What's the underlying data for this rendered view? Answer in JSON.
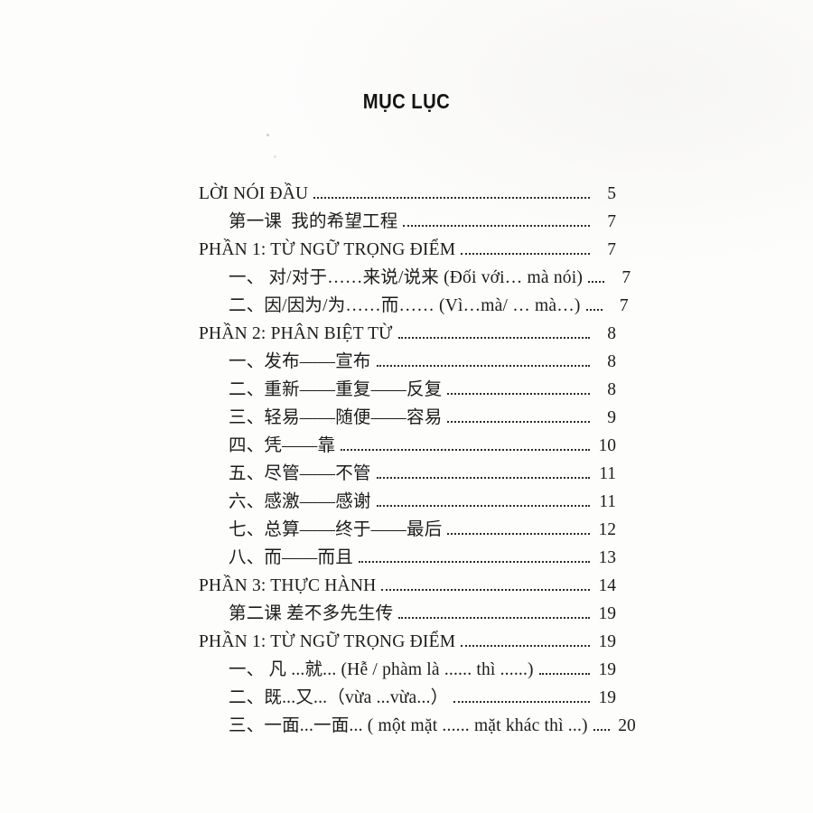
{
  "document": {
    "title": "MỤC LỤC"
  },
  "toc": {
    "entries": [
      {
        "label": "LỜI NÓI ĐẦU",
        "page": "5",
        "indent": 0
      },
      {
        "label": "第一课  我的希望工程",
        "page": "7",
        "indent": 1
      },
      {
        "label": "PHẦN 1: TỪ NGỮ TRỌNG ĐIỂM",
        "page": "7",
        "indent": 0
      },
      {
        "label": "一、 对/对于……来说/说来 (Đối với… mà nói)",
        "page": "7",
        "indent": 1
      },
      {
        "label": "二、因/因为/为……而…… (Vì…mà/ … mà…)",
        "page": "7",
        "indent": 1
      },
      {
        "label": "PHẦN 2: PHÂN BIỆT TỪ",
        "page": "8",
        "indent": 0
      },
      {
        "label": "一、发布——宣布",
        "page": "8",
        "indent": 1
      },
      {
        "label": "二、重新——重复——反复",
        "page": "8",
        "indent": 1
      },
      {
        "label": "三、轻易——随便——容易",
        "page": "9",
        "indent": 1
      },
      {
        "label": "四、凭——靠",
        "page": "10",
        "indent": 1
      },
      {
        "label": "五、尽管——不管",
        "page": "11",
        "indent": 1
      },
      {
        "label": "六、感激——感谢",
        "page": "11",
        "indent": 1
      },
      {
        "label": "七、总算——终于——最后",
        "page": "12",
        "indent": 1
      },
      {
        "label": "八、而——而且",
        "page": "13",
        "indent": 1
      },
      {
        "label": "PHẦN 3: THỰC HÀNH",
        "page": "14",
        "indent": 0
      },
      {
        "label": "第二课 差不多先生传",
        "page": "19",
        "indent": 1
      },
      {
        "label": "PHẦN 1: TỪ NGỮ TRỌNG ĐIỂM",
        "page": "19",
        "indent": 0
      },
      {
        "label": "一、 凡 ...就... (Hễ / phàm là ...... thì ......)",
        "page": "19",
        "indent": 1
      },
      {
        "label": "二、既...又...（vừa ...vừa...）",
        "page": "19",
        "indent": 1
      },
      {
        "label": "三、一面...一面... ( một mặt ...... mặt khác thì ...)",
        "page": "20",
        "indent": 1
      }
    ]
  }
}
